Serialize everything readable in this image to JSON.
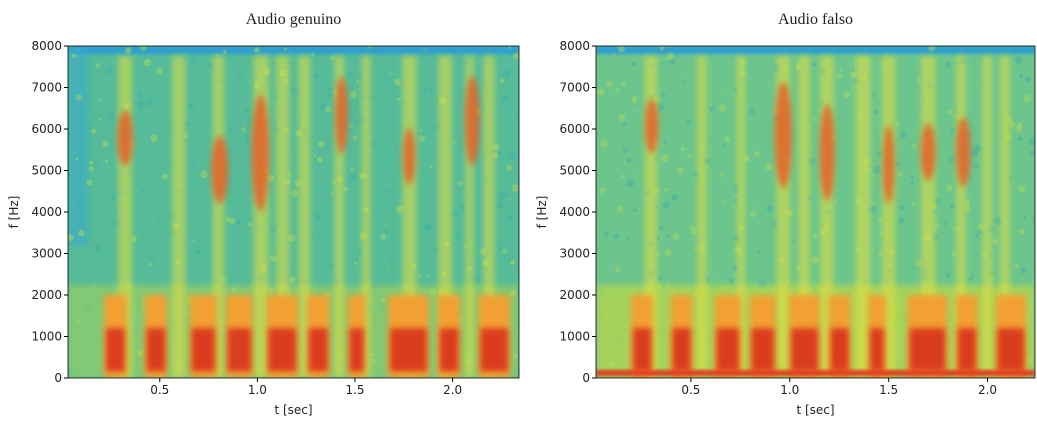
{
  "chart_data": [
    {
      "type": "spectrogram",
      "title": "Audio genuino",
      "xlabel": "t [sec]",
      "ylabel": "f [Hz]",
      "xlim": [
        0.03,
        2.34
      ],
      "ylim": [
        0,
        8000
      ],
      "xticks": [
        0.5,
        {
          "value": 1,
          "label": "1.0"
        },
        1.5,
        {
          "value": 2,
          "label": "2.0"
        }
      ],
      "yticks": [
        0,
        1000,
        2000,
        3000,
        4000,
        5000,
        6000,
        7000,
        8000
      ]
    },
    {
      "type": "spectrogram",
      "title": "Audio falso",
      "xlabel": "t [sec]",
      "ylabel": "f [Hz]",
      "xlim": [
        0.02,
        2.24
      ],
      "ylim": [
        0,
        8000
      ],
      "xticks": [
        0.5,
        {
          "value": 1,
          "label": "1.0"
        },
        1.5,
        {
          "value": 2,
          "label": "2.0"
        }
      ],
      "yticks": [
        0,
        1000,
        2000,
        3000,
        4000,
        5000,
        6000,
        7000,
        8000
      ]
    }
  ]
}
